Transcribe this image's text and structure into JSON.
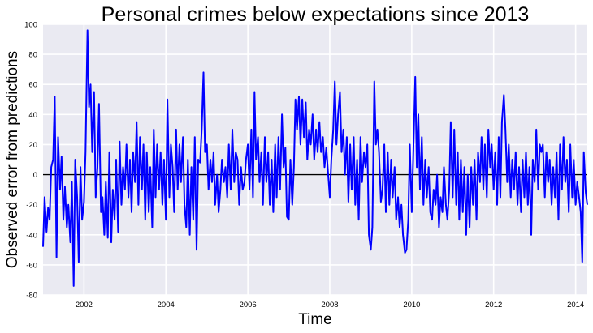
{
  "chart_data": {
    "type": "line",
    "title": "Personal crimes below expectations since 2013",
    "xlabel": "Time",
    "ylabel": "Observed error from predictions",
    "xlim": [
      "2001-01-01",
      "2014-04-15"
    ],
    "ylim": [
      -80,
      100
    ],
    "yticks": [
      -80,
      -60,
      -40,
      -20,
      0,
      20,
      40,
      60,
      80,
      100
    ],
    "xticks": [
      "2002",
      "2004",
      "2006",
      "2008",
      "2010",
      "2012",
      "2014"
    ],
    "grid": true,
    "background": "#eaeaf2",
    "grid_color": "#ffffff",
    "colors": {
      "series": "#0000ff",
      "zero_line": "#000000"
    },
    "reference_line": {
      "y": 0
    },
    "series": [
      {
        "x": [
          "2001-01-01",
          "2001-01-15",
          "2001-02-01",
          "2001-02-15",
          "2001-03-01",
          "2001-03-15",
          "2001-04-01",
          "2001-04-15",
          "2001-05-01",
          "2001-05-15",
          "2001-06-01",
          "2001-06-15",
          "2001-07-01",
          "2001-07-15",
          "2001-08-01",
          "2001-08-15",
          "2001-09-01",
          "2001-09-15",
          "2001-10-01",
          "2001-10-15",
          "2001-11-01",
          "2001-11-15",
          "2001-12-01",
          "2001-12-15",
          "2002-01-01",
          "2002-01-15",
          "2002-02-01",
          "2002-02-15",
          "2002-03-01",
          "2002-03-15",
          "2002-04-01",
          "2002-04-15",
          "2002-05-01",
          "2002-05-15",
          "2002-06-01",
          "2002-06-15",
          "2002-07-01",
          "2002-07-15",
          "2002-08-01",
          "2002-08-15",
          "2002-09-01",
          "2002-09-15",
          "2002-10-01",
          "2002-10-15",
          "2002-11-01",
          "2002-11-15",
          "2002-12-01",
          "2002-12-15",
          "2003-01-01",
          "2003-01-15",
          "2003-02-01",
          "2003-02-15",
          "2003-03-01",
          "2003-03-15",
          "2003-04-01",
          "2003-04-15",
          "2003-05-01",
          "2003-05-15",
          "2003-06-01",
          "2003-06-15",
          "2003-07-01",
          "2003-07-15",
          "2003-08-01",
          "2003-08-15",
          "2003-09-01",
          "2003-09-15",
          "2003-10-01",
          "2003-10-15",
          "2003-11-01",
          "2003-11-15",
          "2003-12-01",
          "2003-12-15",
          "2004-01-01",
          "2004-01-15",
          "2004-02-01",
          "2004-02-15",
          "2004-03-01",
          "2004-03-15",
          "2004-04-01",
          "2004-04-15",
          "2004-05-01",
          "2004-05-15",
          "2004-06-01",
          "2004-06-15",
          "2004-07-01",
          "2004-07-15",
          "2004-08-01",
          "2004-08-15",
          "2004-09-01",
          "2004-09-15",
          "2004-10-01",
          "2004-10-15",
          "2004-11-01",
          "2004-11-15",
          "2004-12-01",
          "2004-12-15",
          "2005-01-01",
          "2005-01-15",
          "2005-02-01",
          "2005-02-15",
          "2005-03-01",
          "2005-03-15",
          "2005-04-01",
          "2005-04-15",
          "2005-05-01",
          "2005-05-15",
          "2005-06-01",
          "2005-06-15",
          "2005-07-01",
          "2005-07-15",
          "2005-08-01",
          "2005-08-15",
          "2005-09-01",
          "2005-09-15",
          "2005-10-01",
          "2005-10-15",
          "2005-11-01",
          "2005-11-15",
          "2005-12-01",
          "2005-12-15",
          "2006-01-01",
          "2006-01-15",
          "2006-02-01",
          "2006-02-15",
          "2006-03-01",
          "2006-03-15",
          "2006-04-01",
          "2006-04-15",
          "2006-05-01",
          "2006-05-15",
          "2006-06-01",
          "2006-06-15",
          "2006-07-01",
          "2006-07-15",
          "2006-08-01",
          "2006-08-15",
          "2006-09-01",
          "2006-09-15",
          "2006-10-01",
          "2006-10-15",
          "2006-11-01",
          "2006-11-15",
          "2006-12-01",
          "2006-12-15",
          "2007-01-01",
          "2007-01-15",
          "2007-02-01",
          "2007-02-15",
          "2007-03-01",
          "2007-03-15",
          "2007-04-01",
          "2007-04-15",
          "2007-05-01",
          "2007-05-15",
          "2007-06-01",
          "2007-06-15",
          "2007-07-01",
          "2007-07-15",
          "2007-08-01",
          "2007-08-15",
          "2007-09-01",
          "2007-09-15",
          "2007-10-01",
          "2007-10-15",
          "2007-11-01",
          "2007-11-15",
          "2007-12-01",
          "2007-12-15",
          "2008-01-01",
          "2008-01-15",
          "2008-02-01",
          "2008-02-15",
          "2008-03-01",
          "2008-03-15",
          "2008-04-01",
          "2008-04-15",
          "2008-05-01",
          "2008-05-15",
          "2008-06-01",
          "2008-06-15",
          "2008-07-01",
          "2008-07-15",
          "2008-08-01",
          "2008-08-15",
          "2008-09-01",
          "2008-09-15",
          "2008-10-01",
          "2008-10-15",
          "2008-11-01",
          "2008-11-15",
          "2008-12-01",
          "2008-12-15",
          "2009-01-01",
          "2009-01-15",
          "2009-02-01",
          "2009-02-15",
          "2009-03-01",
          "2009-03-15",
          "2009-04-01",
          "2009-04-15",
          "2009-05-01",
          "2009-05-15",
          "2009-06-01",
          "2009-06-15",
          "2009-07-01",
          "2009-07-15",
          "2009-08-01",
          "2009-08-15",
          "2009-09-01",
          "2009-09-15",
          "2009-10-01",
          "2009-10-15",
          "2009-11-01",
          "2009-11-15",
          "2009-12-01",
          "2009-12-15",
          "2010-01-01",
          "2010-01-15",
          "2010-02-01",
          "2010-02-15",
          "2010-03-01",
          "2010-03-15",
          "2010-04-01",
          "2010-04-15",
          "2010-05-01",
          "2010-05-15",
          "2010-06-01",
          "2010-06-15",
          "2010-07-01",
          "2010-07-15",
          "2010-08-01",
          "2010-08-15",
          "2010-09-01",
          "2010-09-15",
          "2010-10-01",
          "2010-10-15",
          "2010-11-01",
          "2010-11-15",
          "2010-12-01",
          "2010-12-15",
          "2011-01-01",
          "2011-01-15",
          "2011-02-01",
          "2011-02-15",
          "2011-03-01",
          "2011-03-15",
          "2011-04-01",
          "2011-04-15",
          "2011-05-01",
          "2011-05-15",
          "2011-06-01",
          "2011-06-15",
          "2011-07-01",
          "2011-07-15",
          "2011-08-01",
          "2011-08-15",
          "2011-09-01",
          "2011-09-15",
          "2011-10-01",
          "2011-10-15",
          "2011-11-01",
          "2011-11-15",
          "2011-12-01",
          "2011-12-15",
          "2012-01-01",
          "2012-01-15",
          "2012-02-01",
          "2012-02-15",
          "2012-03-01",
          "2012-03-15",
          "2012-04-01",
          "2012-04-15",
          "2012-05-01",
          "2012-05-15",
          "2012-06-01",
          "2012-06-15",
          "2012-07-01",
          "2012-07-15",
          "2012-08-01",
          "2012-08-15",
          "2012-09-01",
          "2012-09-15",
          "2012-10-01",
          "2012-10-15",
          "2012-11-01",
          "2012-11-15",
          "2012-12-01",
          "2012-12-15",
          "2013-01-01",
          "2013-01-15",
          "2013-02-01",
          "2013-02-15",
          "2013-03-01",
          "2013-03-15",
          "2013-04-01",
          "2013-04-15",
          "2013-05-01",
          "2013-05-15",
          "2013-06-01",
          "2013-06-15",
          "2013-07-01",
          "2013-07-15",
          "2013-08-01",
          "2013-08-15",
          "2013-09-01",
          "2013-09-15",
          "2013-10-01",
          "2013-10-15",
          "2013-11-01",
          "2013-11-15",
          "2013-12-01",
          "2013-12-15",
          "2014-01-01",
          "2014-01-15",
          "2014-02-01",
          "2014-02-15",
          "2014-03-01",
          "2014-03-15",
          "2014-04-01",
          "2014-04-15"
        ],
        "values": [
          -48,
          -15,
          -38,
          -22,
          -30,
          5,
          10,
          52,
          -55,
          25,
          -10,
          12,
          -30,
          -8,
          -35,
          -20,
          -45,
          -5,
          -74,
          10,
          -15,
          -58,
          5,
          -30,
          -18,
          15,
          96,
          45,
          60,
          15,
          55,
          -15,
          5,
          47,
          -25,
          -15,
          -40,
          -5,
          -42,
          15,
          -45,
          -10,
          -30,
          10,
          -38,
          22,
          -20,
          5,
          -10,
          20,
          -15,
          10,
          -25,
          15,
          -5,
          35,
          -20,
          25,
          -10,
          20,
          -30,
          15,
          -25,
          5,
          -35,
          30,
          -15,
          20,
          -10,
          15,
          -20,
          10,
          -30,
          50,
          -15,
          20,
          5,
          -25,
          30,
          -10,
          20,
          -5,
          25,
          -20,
          -35,
          10,
          -40,
          5,
          -30,
          25,
          -50,
          10,
          8,
          30,
          68,
          15,
          20,
          -10,
          10,
          -5,
          15,
          -20,
          0,
          -25,
          -10,
          10,
          -5,
          5,
          -15,
          20,
          -10,
          30,
          -5,
          15,
          10,
          -20,
          5,
          -10,
          -5,
          10,
          20,
          -10,
          30,
          -15,
          55,
          10,
          25,
          -5,
          15,
          -20,
          25,
          -5,
          15,
          -20,
          10,
          -25,
          20,
          -15,
          25,
          -10,
          40,
          5,
          18,
          -28,
          -30,
          10,
          -20,
          5,
          50,
          30,
          52,
          20,
          50,
          25,
          48,
          10,
          30,
          20,
          40,
          10,
          30,
          15,
          35,
          15,
          25,
          5,
          18,
          3,
          -15,
          10,
          30,
          62,
          20,
          40,
          55,
          15,
          30,
          0,
          25,
          -18,
          20,
          -10,
          25,
          -20,
          10,
          -30,
          25,
          -5,
          15,
          5,
          20,
          -40,
          -50,
          -35,
          62,
          20,
          30,
          15,
          -18,
          -10,
          20,
          -25,
          15,
          -20,
          10,
          -15,
          5,
          -30,
          -15,
          -35,
          -20,
          -40,
          -52,
          -50,
          -30,
          20,
          -25,
          15,
          65,
          5,
          40,
          -10,
          25,
          -20,
          10,
          -15,
          5,
          -25,
          -30,
          -10,
          -20,
          0,
          -35,
          -15,
          -25,
          5,
          -20,
          -30,
          -10,
          35,
          -15,
          30,
          -20,
          15,
          -30,
          10,
          -25,
          5,
          -40,
          0,
          -35,
          5,
          -20,
          10,
          -30,
          15,
          -5,
          25,
          -10,
          20,
          -15,
          30,
          5,
          20,
          -10,
          15,
          -20,
          25,
          -15,
          35,
          53,
          30,
          -5,
          20,
          -15,
          10,
          -10,
          15,
          -20,
          5,
          -25,
          10,
          -15,
          15,
          -20,
          5,
          -40,
          10,
          -5,
          30,
          -10,
          20,
          15,
          20,
          -15,
          15,
          -5,
          10,
          -20,
          5,
          -15,
          15,
          -30,
          20,
          -10,
          25,
          -5,
          10,
          -25,
          20,
          -15,
          10,
          -20,
          -5,
          -15,
          -25,
          -58,
          15,
          -12,
          -20
        ]
      }
    ]
  }
}
